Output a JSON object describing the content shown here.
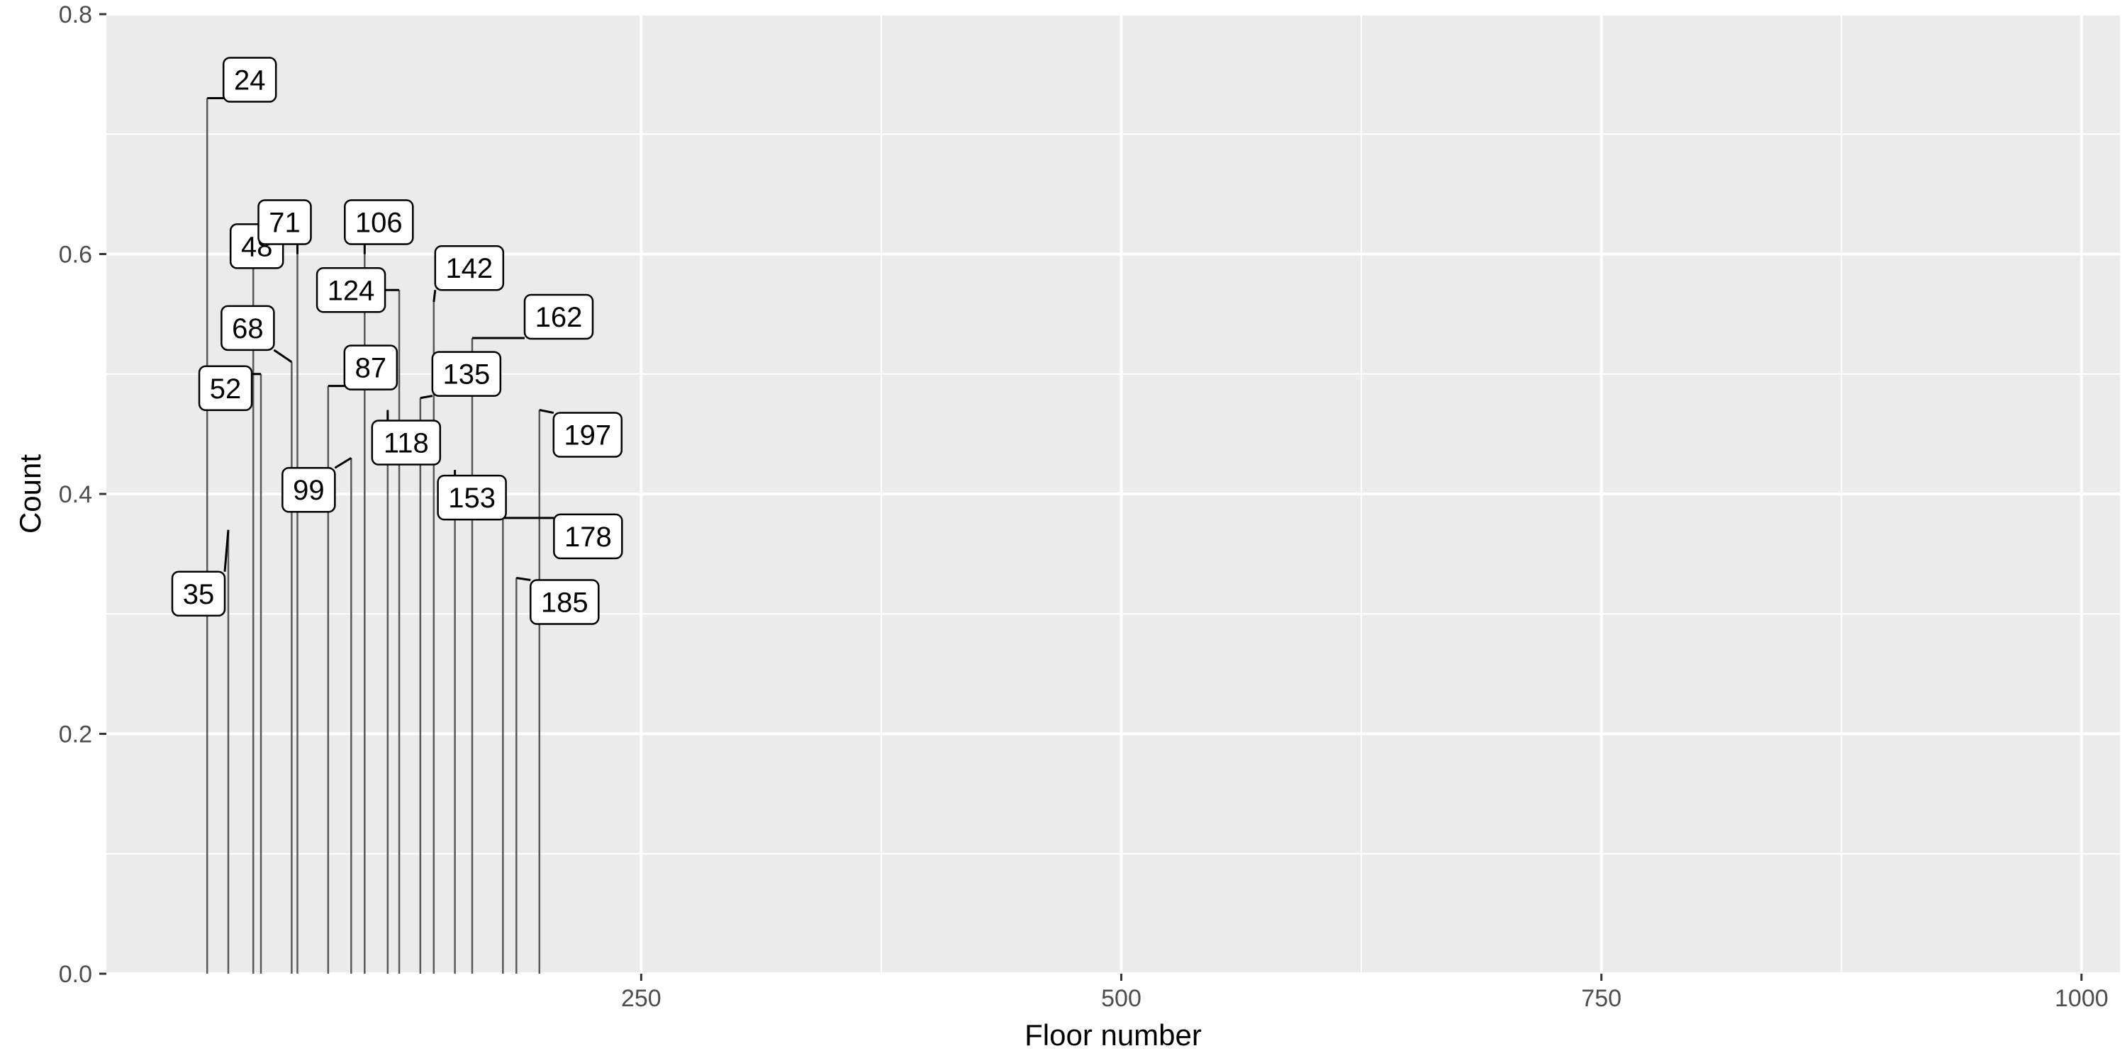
{
  "chart_data": {
    "type": "bar",
    "xlabel": "Floor number",
    "ylabel": "Count",
    "xlim": [
      0,
      1020
    ],
    "ylim": [
      0,
      0.8
    ],
    "x_ticks": [
      250,
      500,
      750,
      1000
    ],
    "x_tick_labels": [
      "250",
      "500",
      "750",
      "1000"
    ],
    "y_ticks": [
      0.0,
      0.2,
      0.4,
      0.6,
      0.8
    ],
    "y_tick_labels": [
      "0.0",
      "0.2",
      "0.4",
      "0.6",
      "0.8"
    ],
    "grid": true,
    "panel_background": "#ebebeb",
    "grid_color": "#ffffff",
    "bar_color": "#595959",
    "points": [
      {
        "x": 24,
        "y": 0.73,
        "label": "24"
      },
      {
        "x": 35,
        "y": 0.37,
        "label": "35"
      },
      {
        "x": 48,
        "y": 0.59,
        "label": "48"
      },
      {
        "x": 52,
        "y": 0.5,
        "label": "52"
      },
      {
        "x": 68,
        "y": 0.51,
        "label": "68"
      },
      {
        "x": 71,
        "y": 0.6,
        "label": "71"
      },
      {
        "x": 87,
        "y": 0.49,
        "label": "87"
      },
      {
        "x": 99,
        "y": 0.43,
        "label": "99"
      },
      {
        "x": 106,
        "y": 0.6,
        "label": "106"
      },
      {
        "x": 118,
        "y": 0.47,
        "label": "118"
      },
      {
        "x": 124,
        "y": 0.57,
        "label": "124"
      },
      {
        "x": 135,
        "y": 0.48,
        "label": "135"
      },
      {
        "x": 142,
        "y": 0.56,
        "label": "142"
      },
      {
        "x": 153,
        "y": 0.42,
        "label": "153"
      },
      {
        "x": 162,
        "y": 0.53,
        "label": "162"
      },
      {
        "x": 178,
        "y": 0.38,
        "label": "178"
      },
      {
        "x": 185,
        "y": 0.33,
        "label": "185"
      },
      {
        "x": 197,
        "y": 0.47,
        "label": "197"
      }
    ]
  }
}
